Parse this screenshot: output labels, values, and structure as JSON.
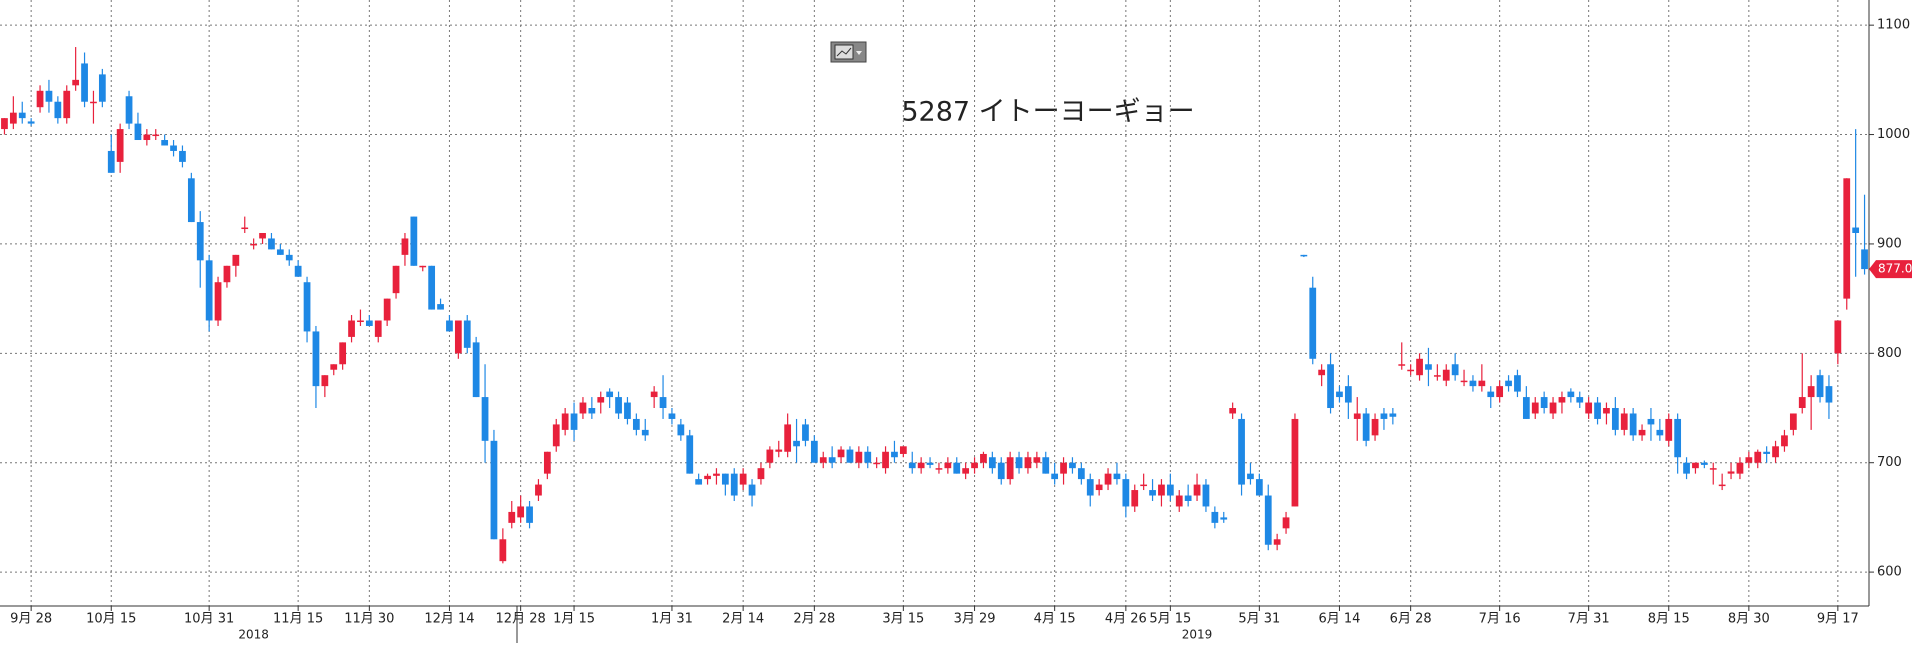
{
  "chart_data": {
    "type": "candlestick",
    "title": "5287 イトーヨーギョー",
    "up_color": "#e8213c",
    "down_color": "#1e88e5",
    "ylim": [
      569,
      1123
    ],
    "yticks": [
      600,
      700,
      800,
      900,
      1000,
      1100
    ],
    "grid": true,
    "last_price": {
      "value": 877,
      "label": "877.0"
    },
    "categories": [
      null,
      null,
      null,
      "9月 28",
      null,
      null,
      null,
      null,
      null,
      null,
      null,
      null,
      "10月 15",
      null,
      null,
      null,
      null,
      null,
      null,
      null,
      null,
      null,
      null,
      "10月 31",
      null,
      null,
      null,
      null,
      null,
      null,
      null,
      null,
      null,
      "11月 15",
      null,
      null,
      null,
      null,
      null,
      null,
      null,
      "11月 30",
      null,
      null,
      null,
      null,
      null,
      null,
      null,
      null,
      "12月 14",
      null,
      null,
      null,
      null,
      null,
      null,
      null,
      "12月 28",
      null,
      null,
      null,
      null,
      null,
      "1月 15",
      null,
      null,
      null,
      null,
      null,
      null,
      null,
      null,
      null,
      null,
      "1月 31",
      null,
      null,
      null,
      null,
      null,
      null,
      null,
      "2月 14",
      null,
      null,
      null,
      null,
      null,
      null,
      null,
      "2月 28",
      null,
      null,
      null,
      null,
      null,
      null,
      null,
      null,
      null,
      "3月 15",
      null,
      null,
      null,
      null,
      null,
      null,
      null,
      "3月 29",
      null,
      null,
      null,
      null,
      null,
      null,
      null,
      null,
      "4月 15",
      null,
      null,
      null,
      null,
      null,
      null,
      null,
      "4月 26",
      null,
      null,
      null,
      null,
      "5月 15",
      null,
      null,
      null,
      null,
      null,
      null,
      null,
      null,
      null,
      "5月 31",
      null,
      null,
      null,
      null,
      null,
      null,
      null,
      null,
      "6月 14",
      null,
      null,
      null,
      null,
      null,
      null,
      null,
      "6月 28",
      null,
      null,
      null,
      null,
      null,
      null,
      null,
      null,
      null,
      "7月 16",
      null,
      null,
      null,
      null,
      null,
      null,
      null,
      null,
      null,
      "7月 31",
      null,
      null,
      null,
      null,
      null,
      null,
      null,
      null,
      "8月 15",
      null,
      null,
      null,
      null,
      null,
      null,
      null,
      null,
      "8月 30",
      null,
      null,
      null,
      null,
      null,
      null,
      null,
      null,
      null,
      "9月 17",
      null,
      null,
      null
    ],
    "years": [
      null,
      null,
      null,
      null,
      null,
      null,
      null,
      null,
      null,
      null,
      null,
      null,
      null,
      null,
      null,
      null,
      null,
      null,
      null,
      null,
      null,
      null,
      null,
      null,
      null,
      null,
      null,
      null,
      "2018",
      null,
      null,
      null,
      null,
      null,
      null,
      null,
      null,
      null,
      null,
      null,
      null,
      null,
      null,
      null,
      null,
      null,
      null,
      null,
      null,
      null,
      null,
      null,
      null,
      null,
      null,
      null,
      null,
      null,
      null,
      null,
      null,
      null,
      null,
      null,
      null,
      null,
      null,
      null,
      null,
      null,
      null,
      null,
      null,
      null,
      null,
      null,
      null,
      null,
      null,
      null,
      null,
      null,
      null,
      null,
      null,
      null,
      null,
      null,
      null,
      null,
      null,
      null,
      null,
      null,
      null,
      null,
      null,
      null,
      null,
      null,
      null,
      null,
      null,
      null,
      null,
      null,
      null,
      null,
      null,
      null,
      null,
      null,
      null,
      null,
      null,
      null,
      null,
      null,
      null,
      null,
      null,
      null,
      null,
      null,
      null,
      null,
      null,
      null,
      null,
      null,
      null,
      null,
      null,
      null,
      "2019",
      null,
      null,
      null,
      null,
      null,
      null,
      null,
      null,
      null,
      null,
      null,
      null,
      null,
      null,
      null,
      null,
      null,
      null,
      null,
      null,
      null,
      null,
      null,
      null,
      null,
      null,
      null,
      null,
      null,
      null,
      null,
      null,
      null,
      null,
      null,
      null,
      null,
      null,
      null,
      null,
      null,
      null,
      null,
      null,
      null,
      null,
      null,
      null,
      null,
      null,
      null,
      null,
      null,
      null,
      null,
      null,
      null,
      null,
      null,
      null,
      null,
      null,
      null,
      null,
      null,
      null,
      null,
      null,
      null,
      null,
      null,
      null,
      null,
      null,
      null
    ],
    "candles": [
      [
        1005,
        1015,
        1000,
        1015
      ],
      [
        1010,
        1035,
        1005,
        1020
      ],
      [
        1020,
        1030,
        1010,
        1015
      ],
      [
        1012,
        1015,
        1008,
        1010
      ],
      [
        1025,
        1045,
        1020,
        1040
      ],
      [
        1040,
        1050,
        1020,
        1030
      ],
      [
        1030,
        1035,
        1010,
        1015
      ],
      [
        1015,
        1045,
        1010,
        1040
      ],
      [
        1045,
        1080,
        1040,
        1050
      ],
      [
        1065,
        1075,
        1025,
        1030
      ],
      [
        1030,
        1040,
        1010,
        1030
      ],
      [
        1055,
        1060,
        1025,
        1030
      ],
      [
        985,
        1000,
        965,
        965
      ],
      [
        975,
        1010,
        965,
        1005
      ],
      [
        1035,
        1040,
        1005,
        1010
      ],
      [
        1010,
        1020,
        995,
        995
      ],
      [
        995,
        1005,
        990,
        1000
      ],
      [
        1000,
        1005,
        995,
        1000
      ],
      [
        995,
        1000,
        990,
        990
      ],
      [
        990,
        995,
        980,
        985
      ],
      [
        985,
        990,
        970,
        975
      ],
      [
        960,
        965,
        920,
        920
      ],
      [
        920,
        930,
        860,
        885
      ],
      [
        885,
        890,
        820,
        830
      ],
      [
        830,
        870,
        825,
        865
      ],
      [
        865,
        880,
        860,
        880
      ],
      [
        880,
        890,
        870,
        890
      ],
      [
        915,
        925,
        910,
        915
      ],
      [
        900,
        905,
        895,
        900
      ],
      [
        905,
        910,
        900,
        910
      ],
      [
        905,
        910,
        895,
        895
      ],
      [
        895,
        900,
        890,
        890
      ],
      [
        890,
        895,
        880,
        885
      ],
      [
        880,
        885,
        870,
        870
      ],
      [
        865,
        870,
        810,
        820
      ],
      [
        820,
        825,
        750,
        770
      ],
      [
        770,
        780,
        760,
        780
      ],
      [
        785,
        790,
        780,
        790
      ],
      [
        790,
        810,
        785,
        810
      ],
      [
        815,
        835,
        810,
        830
      ],
      [
        830,
        840,
        825,
        830
      ],
      [
        830,
        835,
        825,
        825
      ],
      [
        815,
        830,
        810,
        830
      ],
      [
        830,
        850,
        825,
        850
      ],
      [
        855,
        880,
        850,
        880
      ],
      [
        890,
        910,
        880,
        905
      ],
      [
        925,
        925,
        880,
        880
      ],
      [
        880,
        880,
        875,
        880
      ],
      [
        880,
        880,
        840,
        840
      ],
      [
        845,
        850,
        840,
        840
      ],
      [
        830,
        835,
        820,
        820
      ],
      [
        800,
        830,
        795,
        830
      ],
      [
        830,
        835,
        800,
        805
      ],
      [
        810,
        815,
        760,
        760
      ],
      [
        760,
        790,
        700,
        720
      ],
      [
        720,
        730,
        630,
        630
      ],
      [
        610,
        640,
        608,
        630
      ],
      [
        645,
        665,
        640,
        655
      ],
      [
        650,
        670,
        645,
        660
      ],
      [
        660,
        665,
        640,
        645
      ],
      [
        670,
        685,
        665,
        680
      ],
      [
        690,
        710,
        685,
        710
      ],
      [
        715,
        740,
        710,
        735
      ],
      [
        730,
        750,
        725,
        745
      ],
      [
        745,
        755,
        720,
        730
      ],
      [
        745,
        760,
        740,
        755
      ],
      [
        750,
        760,
        740,
        745
      ],
      [
        755,
        765,
        745,
        760
      ],
      [
        765,
        768,
        750,
        760
      ],
      [
        760,
        765,
        740,
        745
      ],
      [
        755,
        760,
        735,
        740
      ],
      [
        740,
        745,
        725,
        730
      ],
      [
        730,
        740,
        720,
        725
      ],
      [
        760,
        770,
        750,
        765
      ],
      [
        760,
        780,
        740,
        750
      ],
      [
        745,
        750,
        735,
        740
      ],
      [
        735,
        740,
        720,
        725
      ],
      [
        725,
        730,
        690,
        690
      ],
      [
        685,
        690,
        680,
        680
      ],
      [
        685,
        690,
        680,
        688
      ],
      [
        688,
        695,
        680,
        690
      ],
      [
        690,
        690,
        670,
        680
      ],
      [
        690,
        695,
        665,
        670
      ],
      [
        680,
        695,
        675,
        690
      ],
      [
        680,
        685,
        660,
        670
      ],
      [
        685,
        700,
        680,
        695
      ],
      [
        700,
        715,
        695,
        712
      ],
      [
        710,
        720,
        705,
        712
      ],
      [
        710,
        745,
        705,
        735
      ],
      [
        720,
        740,
        700,
        715
      ],
      [
        735,
        740,
        715,
        720
      ],
      [
        720,
        725,
        700,
        700
      ],
      [
        700,
        710,
        695,
        705
      ],
      [
        705,
        715,
        695,
        700
      ],
      [
        705,
        715,
        700,
        712
      ],
      [
        712,
        715,
        700,
        700
      ],
      [
        700,
        715,
        695,
        710
      ],
      [
        710,
        715,
        695,
        700
      ],
      [
        700,
        705,
        695,
        700
      ],
      [
        695,
        715,
        690,
        710
      ],
      [
        710,
        720,
        700,
        705
      ],
      [
        708,
        715,
        705,
        715
      ],
      [
        700,
        710,
        690,
        695
      ],
      [
        695,
        705,
        690,
        700
      ],
      [
        700,
        705,
        695,
        698
      ],
      [
        695,
        700,
        690,
        695
      ],
      [
        695,
        705,
        690,
        700
      ],
      [
        700,
        705,
        690,
        690
      ],
      [
        690,
        700,
        685,
        695
      ],
      [
        695,
        705,
        690,
        700
      ],
      [
        700,
        710,
        695,
        708
      ],
      [
        705,
        710,
        690,
        695
      ],
      [
        700,
        705,
        680,
        685
      ],
      [
        685,
        710,
        680,
        705
      ],
      [
        705,
        710,
        690,
        695
      ],
      [
        695,
        710,
        690,
        705
      ],
      [
        700,
        710,
        695,
        705
      ],
      [
        705,
        710,
        690,
        690
      ],
      [
        690,
        700,
        680,
        685
      ],
      [
        690,
        705,
        680,
        700
      ],
      [
        700,
        705,
        690,
        695
      ],
      [
        695,
        700,
        680,
        685
      ],
      [
        685,
        690,
        660,
        670
      ],
      [
        675,
        685,
        670,
        680
      ],
      [
        680,
        695,
        675,
        690
      ],
      [
        690,
        700,
        680,
        685
      ],
      [
        685,
        690,
        650,
        660
      ],
      [
        660,
        680,
        655,
        675
      ],
      [
        680,
        690,
        675,
        680
      ],
      [
        675,
        685,
        665,
        670
      ],
      [
        670,
        685,
        660,
        680
      ],
      [
        680,
        690,
        665,
        670
      ],
      [
        660,
        675,
        655,
        670
      ],
      [
        670,
        680,
        660,
        665
      ],
      [
        670,
        690,
        665,
        680
      ],
      [
        680,
        685,
        655,
        660
      ],
      [
        655,
        660,
        640,
        645
      ],
      [
        650,
        655,
        645,
        648
      ],
      [
        745,
        755,
        740,
        750
      ],
      [
        740,
        745,
        670,
        680
      ],
      [
        690,
        700,
        680,
        685
      ],
      [
        685,
        690,
        670,
        670
      ],
      [
        670,
        680,
        620,
        625
      ],
      [
        625,
        635,
        620,
        630
      ],
      [
        640,
        655,
        635,
        650
      ],
      [
        660,
        745,
        660,
        740
      ],
      [
        890,
        890,
        888,
        889
      ],
      [
        860,
        870,
        790,
        795
      ],
      [
        780,
        790,
        770,
        785
      ],
      [
        790,
        800,
        745,
        750
      ],
      [
        765,
        770,
        755,
        760
      ],
      [
        770,
        780,
        740,
        755
      ],
      [
        740,
        760,
        720,
        745
      ],
      [
        745,
        750,
        715,
        720
      ],
      [
        725,
        745,
        720,
        740
      ],
      [
        745,
        750,
        730,
        740
      ],
      [
        745,
        750,
        735,
        742
      ],
      [
        790,
        810,
        785,
        790
      ],
      [
        785,
        790,
        780,
        785
      ],
      [
        780,
        800,
        775,
        795
      ],
      [
        790,
        805,
        770,
        785
      ],
      [
        780,
        790,
        775,
        780
      ],
      [
        775,
        790,
        770,
        785
      ],
      [
        790,
        800,
        775,
        780
      ],
      [
        775,
        785,
        770,
        775
      ],
      [
        775,
        780,
        765,
        770
      ],
      [
        770,
        790,
        765,
        775
      ],
      [
        765,
        770,
        750,
        760
      ],
      [
        760,
        775,
        755,
        770
      ],
      [
        775,
        780,
        765,
        770
      ],
      [
        780,
        785,
        760,
        765
      ],
      [
        760,
        770,
        740,
        740
      ],
      [
        745,
        760,
        740,
        755
      ],
      [
        760,
        765,
        745,
        750
      ],
      [
        745,
        760,
        740,
        755
      ],
      [
        755,
        765,
        745,
        760
      ],
      [
        765,
        768,
        755,
        760
      ],
      [
        760,
        765,
        750,
        755
      ],
      [
        745,
        760,
        740,
        755
      ],
      [
        755,
        760,
        735,
        740
      ],
      [
        745,
        755,
        735,
        750
      ],
      [
        750,
        760,
        725,
        730
      ],
      [
        730,
        750,
        725,
        745
      ],
      [
        745,
        750,
        720,
        725
      ],
      [
        725,
        735,
        720,
        730
      ],
      [
        740,
        750,
        720,
        735
      ],
      [
        730,
        740,
        720,
        725
      ],
      [
        720,
        745,
        715,
        740
      ],
      [
        740,
        745,
        690,
        705
      ],
      [
        700,
        705,
        685,
        690
      ],
      [
        695,
        700,
        690,
        700
      ],
      [
        700,
        702,
        695,
        698
      ],
      [
        695,
        700,
        680,
        695
      ],
      [
        680,
        690,
        675,
        680
      ],
      [
        690,
        700,
        685,
        692
      ],
      [
        690,
        705,
        685,
        700
      ],
      [
        700,
        710,
        695,
        705
      ],
      [
        700,
        712,
        695,
        710
      ],
      [
        710,
        715,
        700,
        708
      ],
      [
        705,
        720,
        700,
        715
      ],
      [
        715,
        730,
        710,
        725
      ],
      [
        730,
        745,
        725,
        745
      ],
      [
        750,
        800,
        745,
        760
      ],
      [
        760,
        780,
        730,
        770
      ],
      [
        780,
        785,
        755,
        760
      ],
      [
        770,
        780,
        740,
        755
      ],
      [
        800,
        830,
        790,
        830
      ],
      [
        850,
        960,
        840,
        960
      ],
      [
        915,
        1005,
        870,
        910
      ],
      [
        895,
        945,
        872,
        877
      ]
    ]
  }
}
